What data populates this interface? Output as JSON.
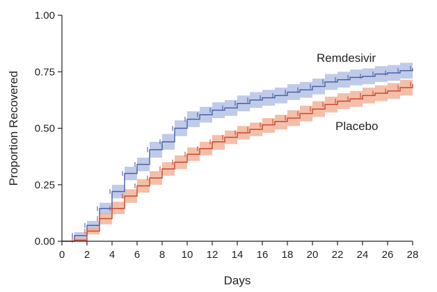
{
  "chart_data": {
    "type": "line",
    "subtype": "kaplan-meier step plot with confidence bands",
    "title": "",
    "xlabel": "Days",
    "ylabel": "Proportion Recovered",
    "xlim": [
      0,
      28
    ],
    "ylim": [
      0,
      1
    ],
    "x_ticks": [
      "0",
      "2",
      "4",
      "6",
      "8",
      "10",
      "12",
      "14",
      "16",
      "18",
      "20",
      "22",
      "24",
      "26",
      "28"
    ],
    "y_ticks": [
      "0.00",
      "0.25",
      "0.50",
      "0.75",
      "1.00"
    ],
    "grid": false,
    "series": [
      {
        "name": "Remdesivir",
        "color": "#4a5fa8",
        "band_color": "#aab9e0",
        "x": [
          0,
          1,
          2,
          3,
          4,
          5,
          6,
          7,
          8,
          9,
          10,
          11,
          12,
          13,
          14,
          15,
          16,
          17,
          18,
          19,
          20,
          21,
          22,
          23,
          24,
          25,
          26,
          27,
          28
        ],
        "y": [
          0,
          0.025,
          0.07,
          0.145,
          0.22,
          0.3,
          0.34,
          0.405,
          0.44,
          0.5,
          0.54,
          0.56,
          0.58,
          0.59,
          0.61,
          0.625,
          0.635,
          0.645,
          0.66,
          0.67,
          0.685,
          0.705,
          0.715,
          0.725,
          0.73,
          0.74,
          0.745,
          0.755,
          0.765
        ],
        "lower": [
          0,
          0.012,
          0.05,
          0.12,
          0.19,
          0.27,
          0.31,
          0.37,
          0.405,
          0.465,
          0.505,
          0.525,
          0.545,
          0.555,
          0.575,
          0.59,
          0.6,
          0.61,
          0.625,
          0.635,
          0.65,
          0.67,
          0.68,
          0.69,
          0.695,
          0.705,
          0.71,
          0.72,
          0.73
        ],
        "upper": [
          0,
          0.04,
          0.09,
          0.17,
          0.25,
          0.33,
          0.37,
          0.44,
          0.475,
          0.535,
          0.575,
          0.595,
          0.615,
          0.625,
          0.645,
          0.66,
          0.67,
          0.68,
          0.695,
          0.705,
          0.72,
          0.74,
          0.75,
          0.76,
          0.765,
          0.775,
          0.78,
          0.79,
          0.8
        ]
      },
      {
        "name": "Placebo",
        "color": "#c8472b",
        "band_color": "#f0a98c",
        "x": [
          0,
          1,
          2,
          3,
          4,
          5,
          6,
          7,
          8,
          9,
          10,
          11,
          12,
          13,
          14,
          15,
          16,
          17,
          18,
          19,
          20,
          21,
          22,
          23,
          24,
          25,
          26,
          27,
          28
        ],
        "y": [
          0,
          0.005,
          0.045,
          0.1,
          0.145,
          0.2,
          0.245,
          0.28,
          0.32,
          0.35,
          0.385,
          0.41,
          0.44,
          0.46,
          0.48,
          0.495,
          0.515,
          0.53,
          0.545,
          0.565,
          0.585,
          0.605,
          0.62,
          0.63,
          0.645,
          0.655,
          0.665,
          0.68,
          0.695
        ],
        "lower": [
          0,
          0,
          0.03,
          0.075,
          0.12,
          0.17,
          0.215,
          0.25,
          0.29,
          0.32,
          0.355,
          0.38,
          0.405,
          0.43,
          0.45,
          0.465,
          0.48,
          0.495,
          0.51,
          0.53,
          0.55,
          0.57,
          0.585,
          0.595,
          0.61,
          0.62,
          0.63,
          0.645,
          0.66
        ],
        "upper": [
          0,
          0.015,
          0.06,
          0.125,
          0.175,
          0.23,
          0.275,
          0.31,
          0.35,
          0.38,
          0.415,
          0.44,
          0.47,
          0.49,
          0.51,
          0.525,
          0.545,
          0.56,
          0.58,
          0.6,
          0.62,
          0.64,
          0.655,
          0.665,
          0.68,
          0.69,
          0.7,
          0.715,
          0.73
        ]
      }
    ]
  }
}
